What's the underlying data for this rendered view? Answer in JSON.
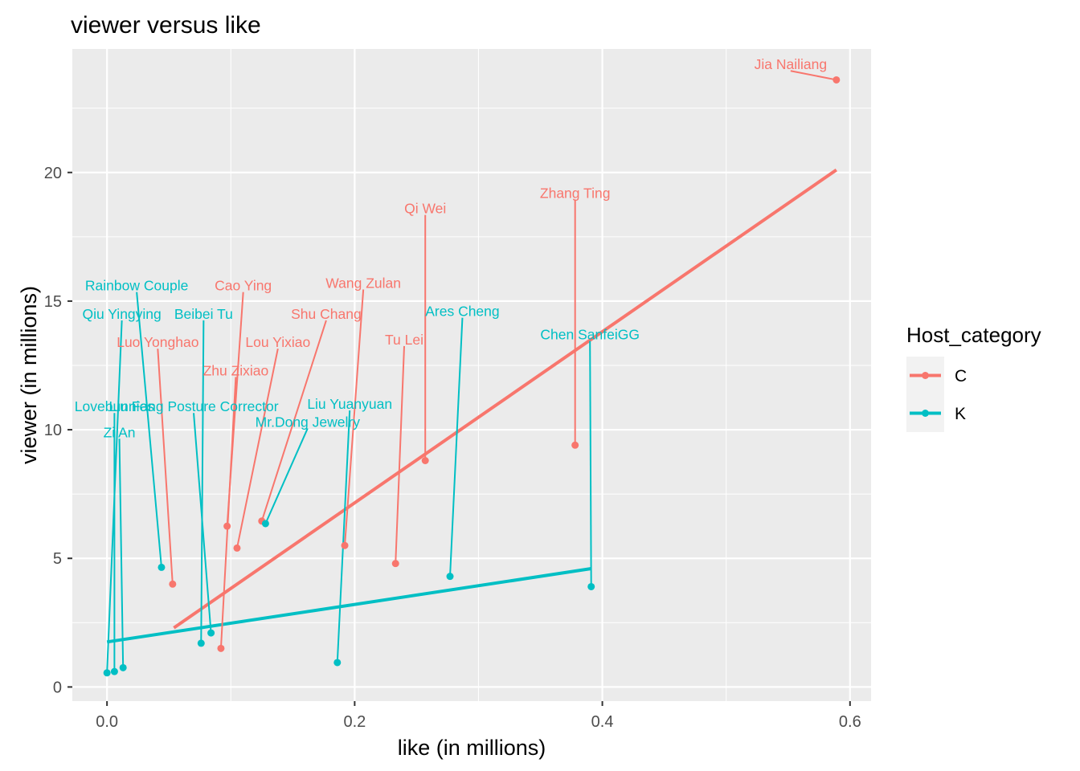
{
  "chart_data": {
    "type": "scatter",
    "title": "viewer versus like",
    "xlabel": "like (in millions)",
    "ylabel": "viewer (in millions)",
    "xlim": [
      -0.028,
      0.617
    ],
    "ylim": [
      -0.55,
      24.8
    ],
    "x_ticks": [
      0.0,
      0.2,
      0.4,
      0.6
    ],
    "x_tick_labels": [
      "0.0",
      "0.2",
      "0.4",
      "0.6"
    ],
    "y_ticks": [
      0,
      5,
      10,
      15,
      20
    ],
    "y_tick_labels": [
      "0",
      "5",
      "10",
      "15",
      "20"
    ],
    "grid": true,
    "legend": {
      "title": "Host_category",
      "placement": "right",
      "entries": [
        {
          "label": "C",
          "color": "#F8766D"
        },
        {
          "label": "K",
          "color": "#00BFC4"
        }
      ]
    },
    "series": [
      {
        "name": "C",
        "color": "#F8766D",
        "points": [
          {
            "label": "Jia Nailiang",
            "x": 0.589,
            "y": 23.6,
            "label_x": 0.552,
            "label_y": 24.2
          },
          {
            "label": "Zhang Ting",
            "x": 0.378,
            "y": 9.4,
            "label_x": 0.378,
            "label_y": 19.2
          },
          {
            "label": "Qi Wei",
            "x": 0.257,
            "y": 8.8,
            "label_x": 0.257,
            "label_y": 18.6
          },
          {
            "label": "Wang Zulan",
            "x": 0.192,
            "y": 5.5,
            "label_x": 0.207,
            "label_y": 15.7
          },
          {
            "label": "Cao Ying",
            "x": 0.097,
            "y": 6.25,
            "label_x": 0.11,
            "label_y": 15.6
          },
          {
            "label": "Shu Chang",
            "x": 0.125,
            "y": 6.45,
            "label_x": 0.177,
            "label_y": 14.5
          },
          {
            "label": "Luo Yonghao",
            "x": 0.053,
            "y": 4.0,
            "label_x": 0.041,
            "label_y": 13.4
          },
          {
            "label": "Lou Yixiao",
            "x": 0.105,
            "y": 5.4,
            "label_x": 0.138,
            "label_y": 13.4
          },
          {
            "label": "Tu Lei",
            "x": 0.233,
            "y": 4.8,
            "label_x": 0.24,
            "label_y": 13.5
          },
          {
            "label": "Zhu Zixiao",
            "x": 0.092,
            "y": 1.5,
            "label_x": 0.104,
            "label_y": 12.3
          }
        ],
        "trend": {
          "x1": 0.054,
          "y1": 2.3,
          "x2": 0.589,
          "y2": 20.1
        }
      },
      {
        "name": "K",
        "color": "#00BFC4",
        "points": [
          {
            "label": "Rainbow Couple",
            "x": 0.044,
            "y": 4.65,
            "label_x": 0.024,
            "label_y": 15.6
          },
          {
            "label": "Qiu Yingying",
            "x": 0.0,
            "y": 0.55,
            "label_x": 0.012,
            "label_y": 14.5
          },
          {
            "label": "Beibei Tu",
            "x": 0.076,
            "y": 1.7,
            "label_x": 0.078,
            "label_y": 14.5
          },
          {
            "label": "Ares Cheng",
            "x": 0.277,
            "y": 4.3,
            "label_x": 0.287,
            "label_y": 14.6
          },
          {
            "label": "Chen SanfeiGG",
            "x": 0.391,
            "y": 3.9,
            "label_x": 0.39,
            "label_y": 13.7
          },
          {
            "label": "Liu Yuanyuan",
            "x": 0.186,
            "y": 0.95,
            "label_x": 0.196,
            "label_y": 11.0
          },
          {
            "label": "Lovebunnies",
            "x": 0.006,
            "y": 0.6,
            "label_x": 0.006,
            "label_y": 10.9
          },
          {
            "label": "Liu Fang Posture Corrector",
            "x": 0.084,
            "y": 2.1,
            "label_x": 0.07,
            "label_y": 10.9
          },
          {
            "label": "Mr.Dong Jewelry",
            "x": 0.128,
            "y": 6.35,
            "label_x": 0.162,
            "label_y": 10.3
          },
          {
            "label": "Zi An",
            "x": 0.013,
            "y": 0.75,
            "label_x": 0.01,
            "label_y": 9.9
          }
        ],
        "trend": {
          "x1": 0.0,
          "y1": 1.75,
          "x2": 0.391,
          "y2": 4.6
        }
      }
    ]
  }
}
